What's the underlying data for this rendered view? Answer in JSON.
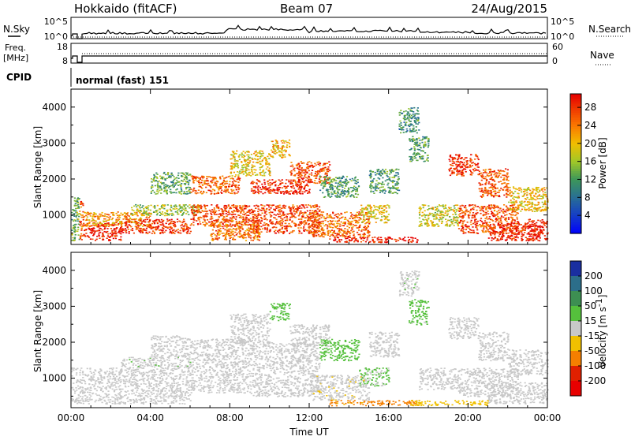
{
  "header": {
    "station": "Hokkaido (fitACF)",
    "beam": "Beam 07",
    "date": "24/Aug/2015"
  },
  "strip_panels": {
    "nsky_label": "N.Sky",
    "nsearch_label": "N.Search",
    "nsky_ticks": [
      "10^5",
      "10^0"
    ],
    "nsearch_ticks": [
      "10^5",
      "10^0"
    ],
    "freq_label_line1": "Freq.",
    "freq_label_line2": "[MHz]",
    "freq_ticks": [
      "18",
      "8"
    ],
    "nave_label": "Nave",
    "nave_ticks": [
      "60",
      "0"
    ],
    "cpid_label": "CPID",
    "cpid_text": "normal (fast) 151"
  },
  "chart_data": [
    {
      "type": "heatmap",
      "name": "power",
      "title": "",
      "xlabel": "",
      "ylabel": "Slant Range [km]",
      "xlim": [
        0,
        24
      ],
      "ylim": [
        180,
        4500
      ],
      "x_ticks": [
        "00:00",
        "04:00",
        "08:00",
        "12:00",
        "16:00",
        "20:00",
        "00:00"
      ],
      "y_ticks": [
        "1000",
        "2000",
        "3000",
        "4000"
      ],
      "y_tick_values": [
        1000,
        2000,
        3000,
        4000
      ],
      "colorbar": {
        "label": "Power [dB]",
        "range": [
          0,
          31
        ],
        "ticks": [
          "4",
          "8",
          "12",
          "16",
          "20",
          "24",
          "28"
        ],
        "tick_values": [
          4,
          8,
          12,
          16,
          20,
          24,
          28
        ]
      },
      "regions": [
        {
          "t0": 0.0,
          "t1": 0.4,
          "r0": 300,
          "r1": 1500,
          "value": 14
        },
        {
          "t0": 0.4,
          "t1": 0.6,
          "r0": 300,
          "r1": 1400,
          "value": 26
        },
        {
          "t0": 0.6,
          "t1": 2.5,
          "r0": 300,
          "r1": 800,
          "value": 30
        },
        {
          "t0": 0.6,
          "t1": 4.0,
          "r0": 700,
          "r1": 1100,
          "value": 22
        },
        {
          "t0": 2.5,
          "t1": 6.0,
          "r0": 500,
          "r1": 900,
          "value": 28
        },
        {
          "t0": 3.0,
          "t1": 6.5,
          "r0": 1000,
          "r1": 1300,
          "value": 16
        },
        {
          "t0": 4.0,
          "t1": 6.0,
          "r0": 1600,
          "r1": 2200,
          "value": 13
        },
        {
          "t0": 6.0,
          "t1": 8.5,
          "r0": 1600,
          "r1": 2100,
          "value": 26
        },
        {
          "t0": 6.0,
          "t1": 9.0,
          "r0": 700,
          "r1": 1300,
          "value": 27
        },
        {
          "t0": 7.0,
          "t1": 9.5,
          "r0": 300,
          "r1": 900,
          "value": 25
        },
        {
          "t0": 8.0,
          "t1": 10.0,
          "r0": 2100,
          "r1": 2800,
          "value": 19
        },
        {
          "t0": 9.0,
          "t1": 12.0,
          "r0": 1600,
          "r1": 2000,
          "value": 29
        },
        {
          "t0": 9.0,
          "t1": 12.5,
          "r0": 500,
          "r1": 1300,
          "value": 27
        },
        {
          "t0": 10.0,
          "t1": 11.0,
          "r0": 2600,
          "r1": 3100,
          "value": 21
        },
        {
          "t0": 11.0,
          "t1": 13.0,
          "r0": 1900,
          "r1": 2500,
          "value": 27
        },
        {
          "t0": 12.0,
          "t1": 15.0,
          "r0": 400,
          "r1": 1100,
          "value": 25
        },
        {
          "t0": 12.5,
          "t1": 14.5,
          "r0": 1500,
          "r1": 2100,
          "value": 12
        },
        {
          "t0": 13.0,
          "t1": 17.5,
          "r0": 250,
          "r1": 400,
          "value": 30
        },
        {
          "t0": 14.5,
          "t1": 16.0,
          "r0": 800,
          "r1": 1300,
          "value": 19
        },
        {
          "t0": 15.0,
          "t1": 16.5,
          "r0": 1600,
          "r1": 2300,
          "value": 12
        },
        {
          "t0": 16.5,
          "t1": 17.5,
          "r0": 3300,
          "r1": 4000,
          "value": 11
        },
        {
          "t0": 17.0,
          "t1": 18.0,
          "r0": 2500,
          "r1": 3200,
          "value": 12
        },
        {
          "t0": 17.5,
          "t1": 19.5,
          "r0": 700,
          "r1": 1300,
          "value": 18
        },
        {
          "t0": 19.0,
          "t1": 20.5,
          "r0": 2100,
          "r1": 2700,
          "value": 29
        },
        {
          "t0": 19.5,
          "t1": 22.5,
          "r0": 500,
          "r1": 1300,
          "value": 27
        },
        {
          "t0": 20.5,
          "t1": 22.0,
          "r0": 1500,
          "r1": 2300,
          "value": 26
        },
        {
          "t0": 21.0,
          "t1": 23.5,
          "r0": 300,
          "r1": 800,
          "value": 29
        },
        {
          "t0": 22.0,
          "t1": 24.0,
          "r0": 1100,
          "r1": 1800,
          "value": 20
        },
        {
          "t0": 23.0,
          "t1": 24.0,
          "r0": 300,
          "r1": 900,
          "value": 30
        }
      ]
    },
    {
      "type": "heatmap",
      "name": "velocity",
      "title": "",
      "xlabel": "Time UT",
      "ylabel": "Slant Range [km]",
      "xlim": [
        0,
        24
      ],
      "ylim": [
        180,
        4500
      ],
      "x_ticks": [
        "00:00",
        "04:00",
        "08:00",
        "12:00",
        "16:00",
        "20:00",
        "00:00"
      ],
      "y_ticks": [
        "1000",
        "2000",
        "3000",
        "4000"
      ],
      "y_tick_values": [
        1000,
        2000,
        3000,
        4000
      ],
      "colorbar": {
        "label": "Velocity [m s",
        "label_superscript": "-1",
        "label_close": "]",
        "categories": [
          "200",
          "100",
          "50",
          "15",
          "-15",
          "-50",
          "-100",
          "-200"
        ],
        "colors": [
          "#1a2fa0",
          "#2c6e8a",
          "#3d8f52",
          "#55c03c",
          "#c8c8c8",
          "#f0c000",
          "#f57f00",
          "#e02000",
          "#e80000"
        ]
      },
      "regions": [
        {
          "t0": 0.0,
          "t1": 6.0,
          "r0": 300,
          "r1": 1300,
          "value": 0
        },
        {
          "t0": 2.5,
          "t1": 6.0,
          "r0": 1300,
          "r1": 1600,
          "value": 5
        },
        {
          "t0": 4.0,
          "t1": 6.0,
          "r0": 1600,
          "r1": 2200,
          "value": 0
        },
        {
          "t0": 6.0,
          "t1": 9.0,
          "r0": 600,
          "r1": 2100,
          "value": 0
        },
        {
          "t0": 8.0,
          "t1": 10.0,
          "r0": 2000,
          "r1": 2800,
          "value": 2
        },
        {
          "t0": 9.0,
          "t1": 12.5,
          "r0": 500,
          "r1": 2000,
          "value": 0
        },
        {
          "t0": 10.0,
          "t1": 11.0,
          "r0": 2600,
          "r1": 3100,
          "value": 25
        },
        {
          "t0": 11.0,
          "t1": 13.0,
          "r0": 1900,
          "r1": 2500,
          "value": 0
        },
        {
          "t0": 12.5,
          "t1": 14.5,
          "r0": 1500,
          "r1": 2100,
          "value": 30
        },
        {
          "t0": 12.0,
          "t1": 15.0,
          "r0": 400,
          "r1": 1100,
          "value": -5
        },
        {
          "t0": 13.0,
          "t1": 17.5,
          "r0": 250,
          "r1": 400,
          "value": -60
        },
        {
          "t0": 14.5,
          "t1": 16.0,
          "r0": 800,
          "r1": 1300,
          "value": 20
        },
        {
          "t0": 15.0,
          "t1": 16.5,
          "r0": 1600,
          "r1": 2300,
          "value": 2
        },
        {
          "t0": 16.5,
          "t1": 17.5,
          "r0": 3300,
          "r1": 4000,
          "value": 5
        },
        {
          "t0": 17.0,
          "t1": 18.0,
          "r0": 2500,
          "r1": 3200,
          "value": 25
        },
        {
          "t0": 17.5,
          "t1": 19.5,
          "r0": 700,
          "r1": 1300,
          "value": 0
        },
        {
          "t0": 17.0,
          "t1": 21.0,
          "r0": 250,
          "r1": 400,
          "value": -30
        },
        {
          "t0": 19.0,
          "t1": 20.5,
          "r0": 2100,
          "r1": 2700,
          "value": 0
        },
        {
          "t0": 19.5,
          "t1": 22.5,
          "r0": 500,
          "r1": 1300,
          "value": 0
        },
        {
          "t0": 20.5,
          "t1": 22.0,
          "r0": 1500,
          "r1": 2300,
          "value": 0
        },
        {
          "t0": 21.0,
          "t1": 24.0,
          "r0": 300,
          "r1": 900,
          "value": 0
        },
        {
          "t0": 22.0,
          "t1": 24.0,
          "r0": 1100,
          "r1": 1800,
          "value": 0
        }
      ]
    }
  ]
}
